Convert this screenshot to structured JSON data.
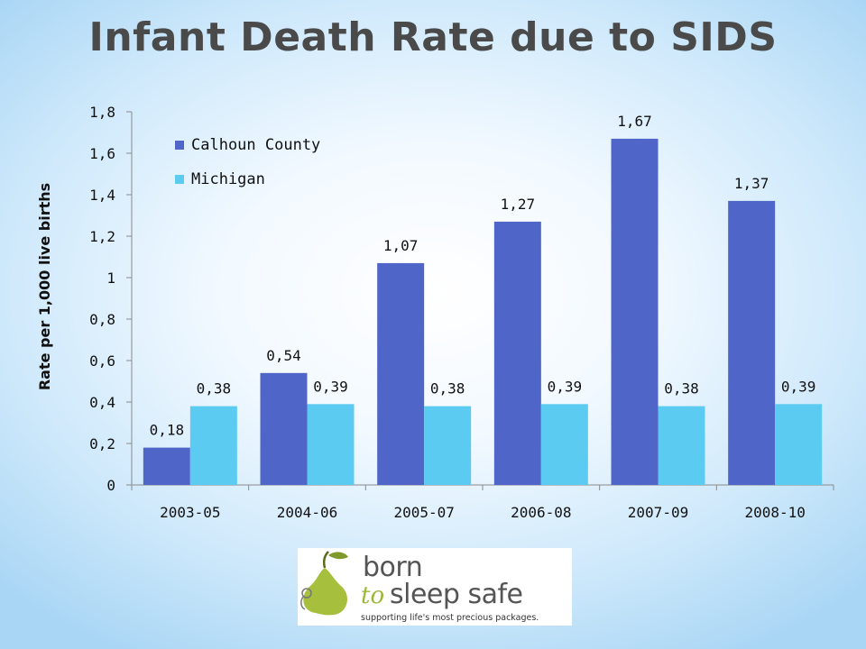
{
  "chart_data": {
    "type": "bar",
    "title": "Infant Death Rate due to SIDS",
    "ylabel": "Rate per 1,000 live births",
    "xlabel": "",
    "categories": [
      "2003-05",
      "2004-06",
      "2005-07",
      "2006-08",
      "2007-09",
      "2008-10"
    ],
    "series": [
      {
        "name": "Calhoun County",
        "color": "#4f66c8",
        "values": [
          0.18,
          0.54,
          1.07,
          1.27,
          1.67,
          1.37
        ],
        "labels": [
          "0,18",
          "0,54",
          "1,07",
          "1,27",
          "1,67",
          "1,37"
        ]
      },
      {
        "name": "Michigan",
        "color": "#5ccbf2",
        "values": [
          0.38,
          0.39,
          0.38,
          0.39,
          0.38,
          0.39
        ],
        "labels": [
          "0,38",
          "0,39",
          "0,38",
          "0,39",
          "0,38",
          "0,39"
        ]
      }
    ],
    "ylim": [
      0,
      1.8
    ],
    "yticks": [
      0,
      0.2,
      0.4,
      0.6,
      0.8,
      1,
      1.2,
      1.4,
      1.6,
      1.8
    ],
    "ytick_labels": [
      "0",
      "0,2",
      "0,4",
      "0,6",
      "0,8",
      "1",
      "1,2",
      "1,4",
      "1,6",
      "1,8"
    ],
    "grid": false,
    "legend_position": "top-left"
  },
  "logo": {
    "line1": "born",
    "line2a": "to",
    "line2b": "sleep safe",
    "tagline": "supporting life's most precious packages."
  }
}
